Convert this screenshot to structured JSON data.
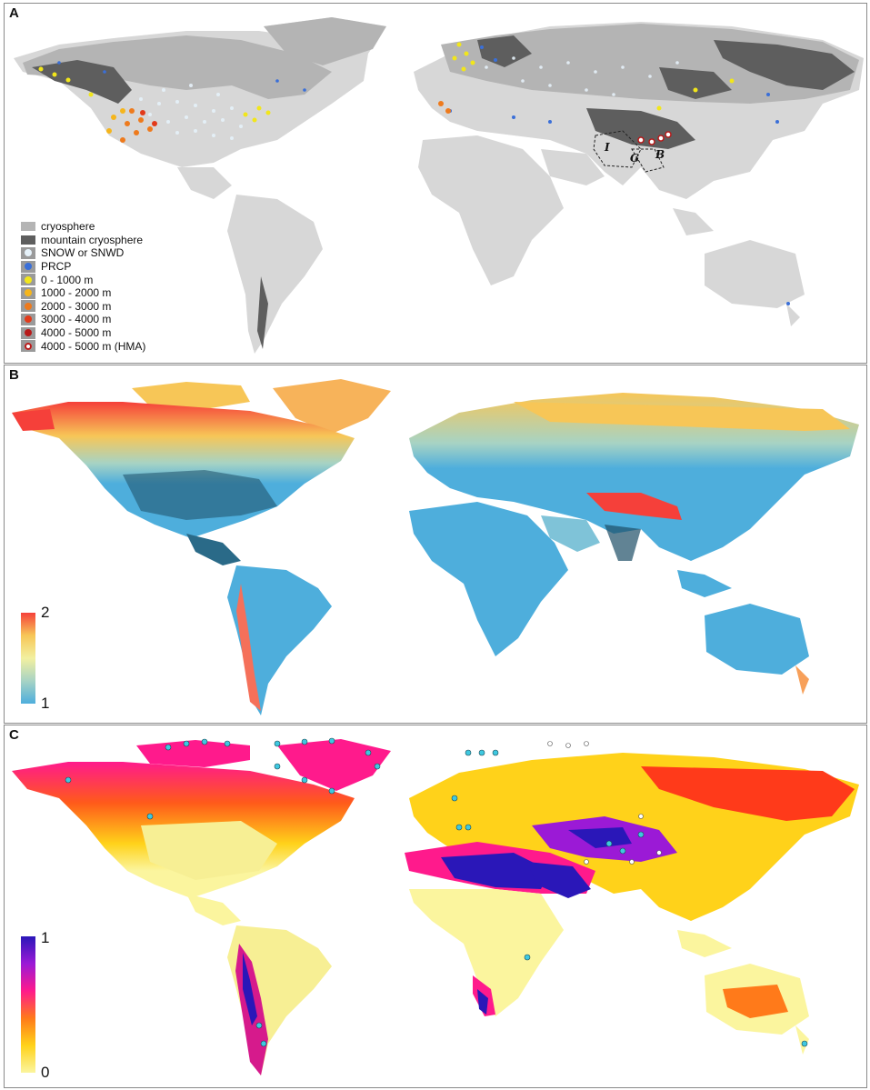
{
  "panels": {
    "a": {
      "label": "A",
      "region_labels": [
        "I",
        "G",
        "B"
      ],
      "legend": [
        {
          "label": "cryosphere",
          "kind": "swatch",
          "color": "#b4b4b4"
        },
        {
          "label": "mountain cryosphere",
          "kind": "swatch",
          "color": "#5e5e5e"
        },
        {
          "label": "SNOW or SNWD",
          "kind": "dot",
          "color": "#e6f2fa"
        },
        {
          "label": "PRCP",
          "kind": "dot",
          "color": "#3a6fd8"
        },
        {
          "label": "0 - 1000 m",
          "kind": "dot",
          "color": "#f2e61a"
        },
        {
          "label": "1000 - 2000 m",
          "kind": "dot",
          "color": "#f5b51c"
        },
        {
          "label": "2000 - 3000 m",
          "kind": "dot",
          "color": "#ee7a1c"
        },
        {
          "label": "3000 - 4000 m",
          "kind": "dot",
          "color": "#e23a1a"
        },
        {
          "label": "4000 - 5000 m",
          "kind": "dot",
          "color": "#b71a1a"
        },
        {
          "label": "4000 - 5000 m (HMA)",
          "kind": "ring",
          "color": "#b71a1a"
        }
      ]
    },
    "b": {
      "label": "B",
      "colorbar": {
        "max_label": "2",
        "min_label": "1",
        "colors": [
          "#f5403a",
          "#f7c657",
          "#f2f0a0",
          "#a7d3c4",
          "#4eaedc"
        ]
      }
    },
    "c": {
      "label": "C",
      "colorbar": {
        "max_label": "1",
        "min_label": "0",
        "colors": [
          "#2a17b8",
          "#9b1ad6",
          "#ff1a8c",
          "#ff7a1a",
          "#ffd21a",
          "#fbf59e"
        ]
      }
    }
  }
}
